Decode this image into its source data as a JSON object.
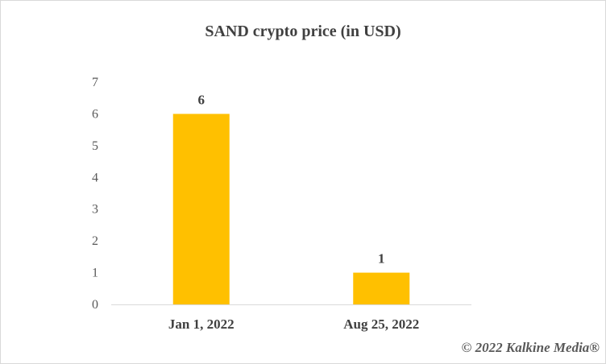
{
  "chart_data": {
    "type": "bar",
    "title": "SAND crypto price (in USD)",
    "categories": [
      "Jan 1, 2022",
      "Aug 25, 2022"
    ],
    "values": [
      6,
      1
    ],
    "data_labels": [
      "6",
      "1"
    ],
    "xlabel": "",
    "ylabel": "",
    "ylim": [
      0,
      7
    ],
    "y_ticks": [
      0,
      1,
      2,
      3,
      4,
      5,
      6,
      7
    ],
    "grid": false,
    "legend": "none",
    "bar_color": "#FFC000"
  },
  "watermark": "© 2022 Kalkine Media®"
}
